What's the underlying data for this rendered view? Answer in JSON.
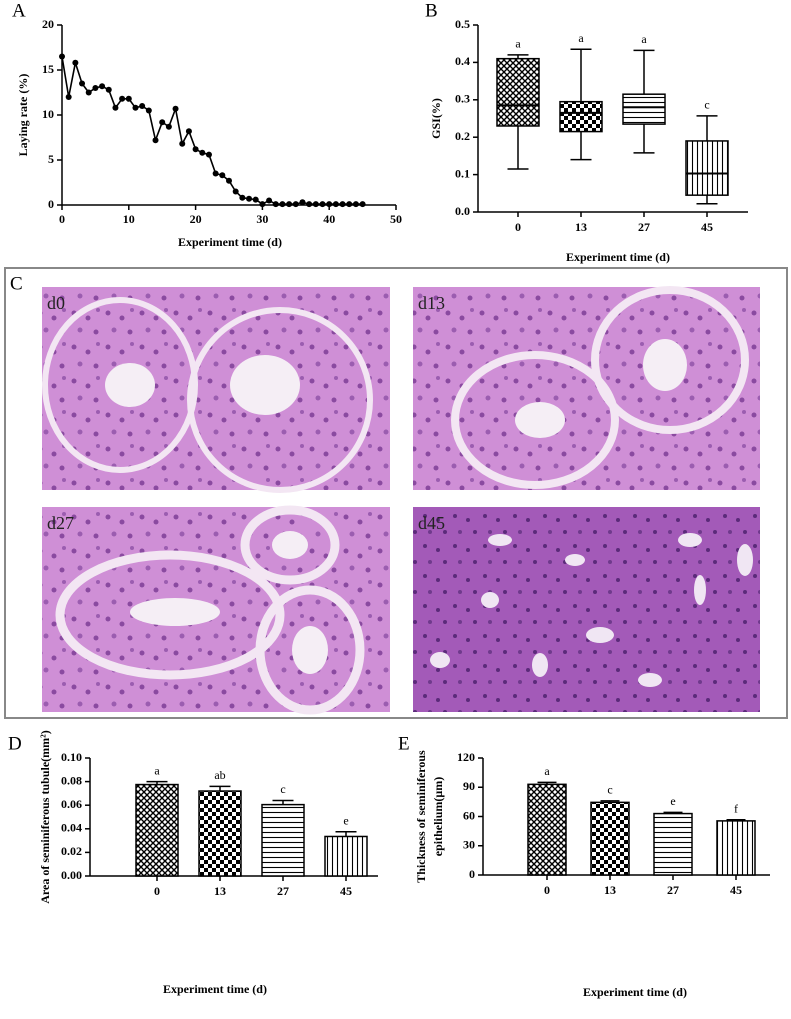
{
  "chart_data": [
    {
      "panel": "A",
      "type": "line",
      "xlabel": "Experiment  time (d)",
      "ylabel": "Laying rate (%)",
      "x": [
        0,
        1,
        2,
        3,
        4,
        5,
        6,
        7,
        8,
        9,
        10,
        11,
        12,
        13,
        14,
        15,
        16,
        17,
        18,
        19,
        20,
        21,
        22,
        23,
        24,
        25,
        26,
        27,
        28,
        29,
        30,
        31,
        32,
        33,
        34,
        35,
        36,
        37,
        38,
        39,
        40,
        41,
        42,
        43,
        44,
        45
      ],
      "values": [
        16.5,
        12,
        15.8,
        13.5,
        12.5,
        13,
        13.2,
        12.8,
        10.8,
        11.8,
        11.8,
        10.8,
        11,
        10.5,
        7.2,
        9.2,
        8.7,
        10.7,
        6.8,
        8.2,
        6.2,
        5.8,
        5.6,
        3.5,
        3.3,
        2.7,
        1.5,
        0.8,
        0.7,
        0.6,
        0.1,
        0.5,
        0.1,
        0.1,
        0.1,
        0.1,
        0.3,
        0.1,
        0.1,
        0.1,
        0.1,
        0.1,
        0.1,
        0.1,
        0.1,
        0.1
      ],
      "color": "#000000",
      "xlim": [
        0,
        50
      ],
      "xticks": [
        0,
        10,
        20,
        30,
        40,
        50
      ],
      "ylim": [
        0,
        20
      ],
      "yticks": [
        0,
        5,
        10,
        15,
        20
      ]
    },
    {
      "panel": "B",
      "type": "box",
      "xlabel": "Experiment  time (d)",
      "ylabel": "GSI(%)",
      "categories": [
        "0",
        "13",
        "27",
        "45"
      ],
      "boxes": [
        {
          "min": 0.115,
          "q1": 0.23,
          "median": 0.285,
          "q3": 0.41,
          "max": 0.42
        },
        {
          "min": 0.14,
          "q1": 0.215,
          "median": 0.265,
          "q3": 0.295,
          "max": 0.435
        },
        {
          "min": 0.158,
          "q1": 0.235,
          "median": 0.28,
          "q3": 0.315,
          "max": 0.432
        },
        {
          "min": 0.022,
          "q1": 0.045,
          "median": 0.103,
          "q3": 0.19,
          "max": 0.257
        }
      ],
      "letters": [
        "a",
        "a",
        "a",
        "c"
      ],
      "ylim": [
        0,
        0.5
      ],
      "yticks": [
        {
          "value": 0,
          "label": "0.0"
        },
        0.1,
        0.2,
        0.3,
        0.4,
        0.5
      ]
    },
    {
      "panel": "D",
      "type": "bar",
      "xlabel": "Experiment  time (d)",
      "ylabel": [
        "Area of seminiferous tubule(mm²)"
      ],
      "categories": [
        "0",
        "13",
        "27",
        "45"
      ],
      "values": [
        0.0775,
        0.072,
        0.0605,
        0.0335
      ],
      "errors": [
        0.0025,
        0.004,
        0.0035,
        0.004
      ],
      "letters": [
        "a",
        "ab",
        "c",
        "e"
      ],
      "ylim": [
        0,
        0.1
      ],
      "yticks": [
        {
          "value": 0,
          "label": "0.00"
        },
        0.02,
        0.04,
        0.06,
        0.08,
        {
          "value": 0.1,
          "label": "0.10"
        }
      ]
    },
    {
      "panel": "E",
      "type": "bar",
      "xlabel": "Experiment  time (d)",
      "ylabel": [
        "Thickness of  seminiferous",
        "epithelium(μm)"
      ],
      "categories": [
        "0",
        "13",
        "27",
        "45"
      ],
      "values": [
        93,
        74.5,
        63,
        55.5
      ],
      "errors": [
        2,
        1.5,
        1.2,
        1.2
      ],
      "letters": [
        "a",
        "c",
        "e",
        "f"
      ],
      "ylim": [
        0,
        120
      ],
      "yticks": [
        0,
        30,
        60,
        90,
        120
      ]
    }
  ],
  "micrographs": {
    "panel": "C",
    "labels": [
      "d0",
      "d13",
      "d27",
      "d45"
    ]
  }
}
